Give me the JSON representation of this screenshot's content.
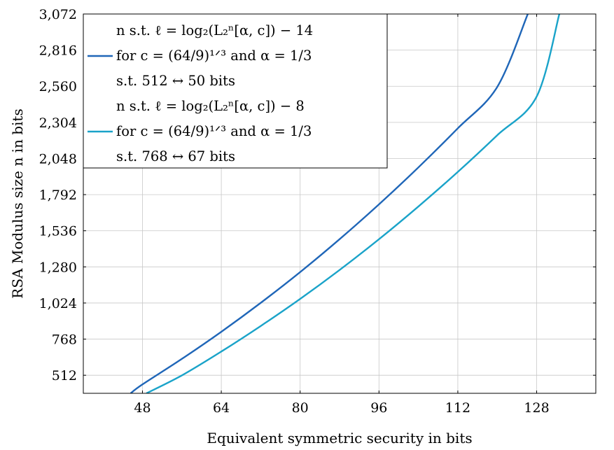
{
  "chart_data": {
    "type": "line",
    "xlabel": "Equivalent symmetric security in bits",
    "ylabel": "RSA Modulus size n in bits",
    "xlim": [
      36,
      140
    ],
    "ylim": [
      384,
      3072
    ],
    "x_ticks": [
      48,
      64,
      80,
      96,
      112,
      128
    ],
    "x_tick_labels": [
      "48",
      "64",
      "80",
      "96",
      "112",
      "128"
    ],
    "y_ticks": [
      512,
      768,
      1024,
      1280,
      1536,
      1792,
      2048,
      2304,
      2560,
      2816,
      3072
    ],
    "y_tick_labels": [
      "512",
      "768",
      "1,024",
      "1,280",
      "1,536",
      "1,792",
      "2,048",
      "2,304",
      "2,560",
      "2,816",
      "3,072"
    ],
    "grid": true,
    "legend_position": "top-left",
    "series": [
      {
        "name": "n s.t. ℓ = log2(L2n[α, c]) − 14 for c = (64/9)^1/3 and α = 1/3 s.t. 512 ↔ 50 bits",
        "legend_lines": [
          "n s.t. ℓ = log₂(L₂ⁿ[α, c]) − 14",
          "for c = (64/9)¹ᐟ³ and α = 1/3",
          "s.t. 512 ↔ 50 bits"
        ],
        "color": "#1f66b8",
        "x": [
          45.6,
          48,
          56,
          64,
          72,
          80,
          88,
          96,
          104,
          112,
          120,
          126.2
        ],
        "y": [
          384,
          447,
          628,
          820,
          1025,
          1243,
          1476,
          1723,
          1985,
          2262,
          2555,
          3072
        ]
      },
      {
        "name": "n s.t. ℓ = log2(L2n[α, c]) − 8 for c = (64/9)^1/3 and α = 1/3 s.t. 768 ↔ 67 bits",
        "legend_lines": [
          "n s.t. ℓ = log₂(L₂ⁿ[α, c]) − 8",
          "for c = (64/9)¹ᐟ³ and α = 1/3",
          "s.t. 768 ↔ 67 bits"
        ],
        "color": "#1aa3c9",
        "x": [
          48.8,
          56,
          64,
          72,
          80,
          88,
          96,
          104,
          112,
          120,
          128,
          132.6
        ],
        "y": [
          384,
          511,
          680,
          861,
          1053,
          1258,
          1476,
          1708,
          1953,
          2213,
          2487,
          3072
        ]
      }
    ]
  }
}
